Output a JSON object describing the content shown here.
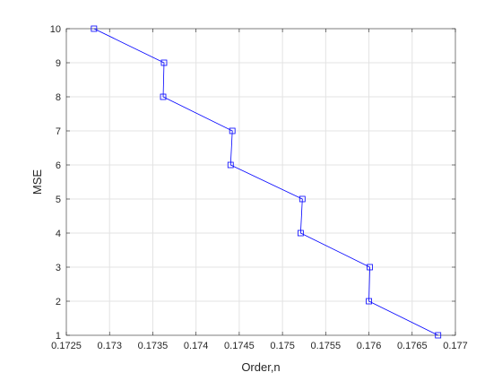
{
  "chart_data": {
    "type": "line",
    "title": "",
    "xlabel": "Order,n",
    "ylabel": "MSE",
    "xlim": [
      0.1725,
      0.177
    ],
    "ylim": [
      1,
      10
    ],
    "x_ticks": [
      0.1725,
      0.173,
      0.1735,
      0.174,
      0.1745,
      0.175,
      0.1755,
      0.176,
      0.1765,
      0.177
    ],
    "x_tick_labels": [
      "0.1725",
      "0.173",
      "0.1735",
      "0.174",
      "0.1745",
      "0.175",
      "0.1755",
      "0.176",
      "0.1765",
      "0.177"
    ],
    "y_ticks": [
      1,
      2,
      3,
      4,
      5,
      6,
      7,
      8,
      9,
      10
    ],
    "y_tick_labels": [
      "1",
      "2",
      "3",
      "4",
      "5",
      "6",
      "7",
      "8",
      "9",
      "10"
    ],
    "grid": true,
    "legend": "none",
    "series": [
      {
        "color": "#0000ff",
        "marker": "square",
        "x": [
          0.1768,
          0.176,
          0.17601,
          0.17521,
          0.17523,
          0.1744,
          0.17442,
          0.17362,
          0.17363,
          0.17282
        ],
        "y": [
          1,
          2,
          3,
          4,
          5,
          6,
          7,
          8,
          9,
          10
        ]
      }
    ]
  }
}
